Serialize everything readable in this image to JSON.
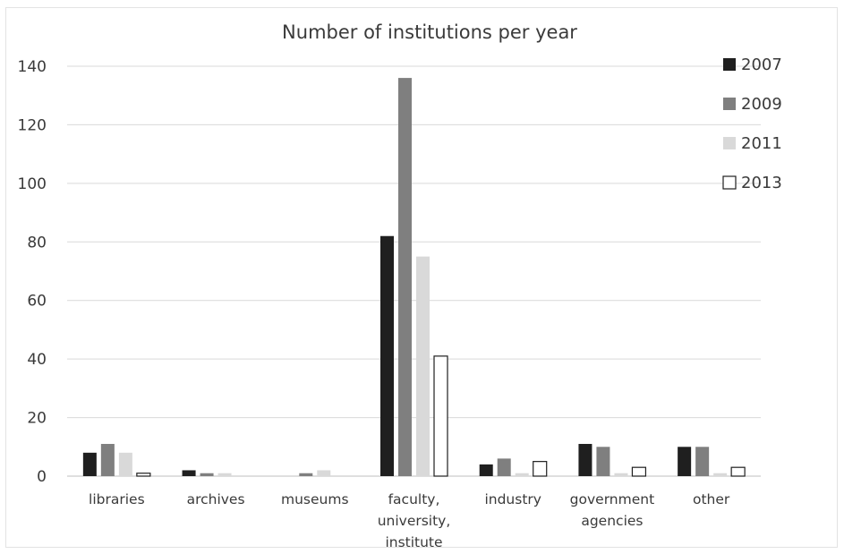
{
  "chart_data": {
    "type": "bar",
    "title": "Number of institutions per year",
    "xlabel": "",
    "ylabel": "",
    "ylim": [
      0,
      140
    ],
    "yticks": [
      "0",
      "20",
      "40",
      "60",
      "80",
      "100",
      "120",
      "140"
    ],
    "grid": true,
    "legend": "top-right",
    "categories": [
      [
        "libraries"
      ],
      [
        "archives"
      ],
      [
        "museums"
      ],
      [
        "faculty,",
        "university,",
        "institute"
      ],
      [
        "industry"
      ],
      [
        "government",
        "agencies"
      ],
      [
        "other"
      ]
    ],
    "series": [
      {
        "name": "2007",
        "color": "#1f1f1f",
        "outline": false,
        "values": [
          8,
          2,
          0,
          82,
          4,
          11,
          10
        ]
      },
      {
        "name": "2009",
        "color": "#7f7f7f",
        "outline": false,
        "values": [
          11,
          1,
          1,
          136,
          6,
          10,
          10
        ]
      },
      {
        "name": "2011",
        "color": "#d9d9d9",
        "outline": false,
        "values": [
          8,
          1,
          2,
          75,
          1,
          1,
          1
        ]
      },
      {
        "name": "2013",
        "color": "#ffffff",
        "outline": true,
        "values": [
          1,
          0,
          0,
          41,
          5,
          3,
          3
        ]
      }
    ]
  }
}
